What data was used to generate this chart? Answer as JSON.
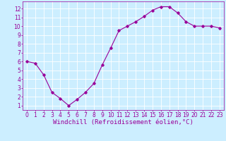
{
  "x": [
    0,
    1,
    2,
    3,
    4,
    5,
    6,
    7,
    8,
    9,
    10,
    11,
    12,
    13,
    14,
    15,
    16,
    17,
    18,
    19,
    20,
    21,
    22,
    23
  ],
  "y": [
    6.0,
    5.8,
    4.5,
    2.5,
    1.8,
    1.0,
    1.7,
    2.5,
    3.5,
    5.6,
    7.5,
    9.5,
    10.0,
    10.5,
    11.1,
    11.8,
    12.2,
    12.2,
    11.5,
    10.5,
    10.0,
    10.0,
    10.0,
    9.8
  ],
  "line_color": "#990099",
  "marker": "D",
  "marker_size": 1.8,
  "line_width": 0.8,
  "bg_color": "#cceeff",
  "grid_color": "#ffffff",
  "xlabel": "Windchill (Refroidissement éolien,°C)",
  "xlabel_color": "#990099",
  "xlabel_fontsize": 6.5,
  "tick_color": "#990099",
  "tick_fontsize": 5.5,
  "ylim": [
    0.5,
    12.8
  ],
  "xlim": [
    -0.5,
    23.5
  ],
  "yticks": [
    1,
    2,
    3,
    4,
    5,
    6,
    7,
    8,
    9,
    10,
    11,
    12
  ],
  "xticks": [
    0,
    1,
    2,
    3,
    4,
    5,
    6,
    7,
    8,
    9,
    10,
    11,
    12,
    13,
    14,
    15,
    16,
    17,
    18,
    19,
    20,
    21,
    22,
    23
  ]
}
